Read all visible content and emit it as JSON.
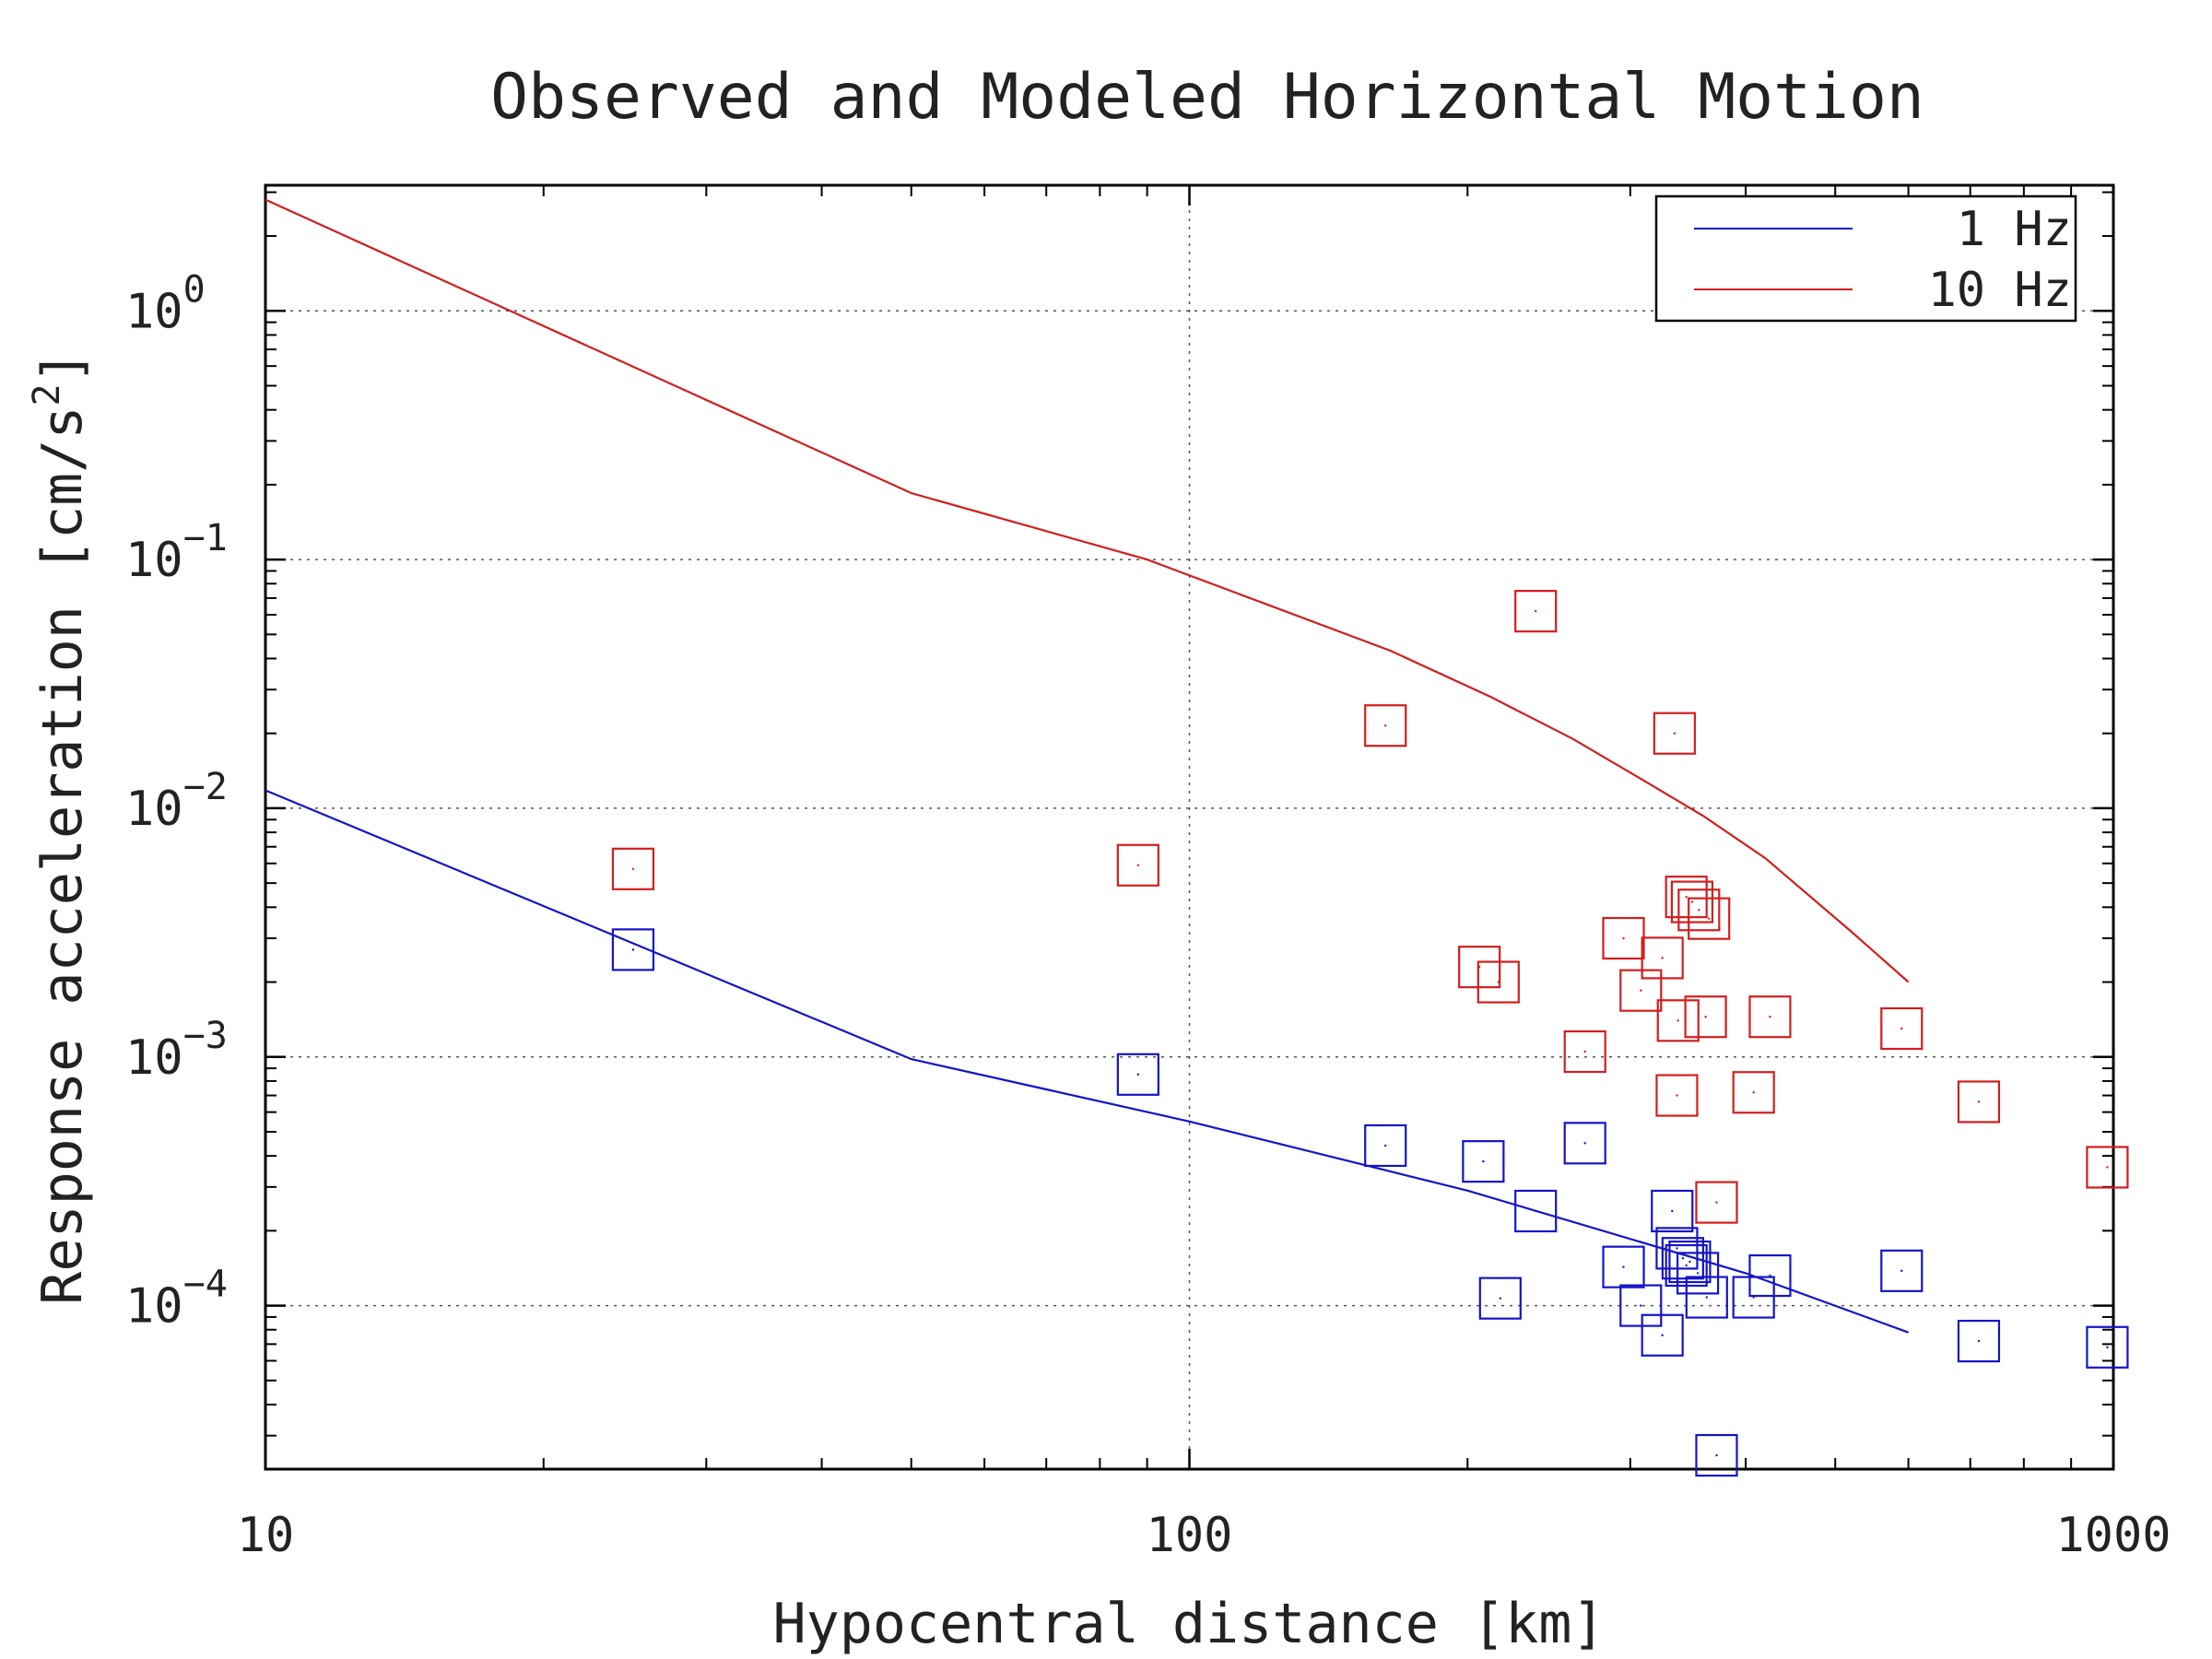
{
  "chart_data": {
    "type": "scatter",
    "title": "Observed and Modeled Horizontal Motion",
    "xlabel": "Hypocentral distance [km]",
    "ylabel": "Response acceleration [cm/s",
    "ylabel_superscript": "2",
    "ylabel_suffix": "]",
    "x_scale": "log",
    "y_scale": "log",
    "xlim": [
      10,
      1000
    ],
    "ylim": [
      2.2e-05,
      3.2
    ],
    "x_ticks": [
      {
        "value": 10,
        "label": "10"
      },
      {
        "value": 100,
        "label": "100"
      },
      {
        "value": 1000,
        "label": "1000"
      }
    ],
    "y_ticks": [
      {
        "value": 1,
        "base": "10",
        "exp": "0"
      },
      {
        "value": 0.1,
        "base": "10",
        "exp": "−1"
      },
      {
        "value": 0.01,
        "base": "10",
        "exp": "−2"
      },
      {
        "value": 0.001,
        "base": "10",
        "exp": "−3"
      },
      {
        "value": 0.0001,
        "base": "10",
        "exp": "−4"
      }
    ],
    "grid": true,
    "legend": {
      "position": "top-right"
    },
    "series": [
      {
        "name": "1 Hz",
        "color": "#1414c8",
        "model_line": [
          [
            10,
            0.0118
          ],
          [
            50,
            0.00098
          ],
          [
            100,
            0.00055
          ],
          [
            200,
            0.00029
          ],
          [
            400,
            0.000135
          ],
          [
            600,
            7.8e-05
          ]
        ],
        "observed": [
          [
            25,
            0.0027
          ],
          [
            88,
            0.00085
          ],
          [
            163,
            0.00044
          ],
          [
            208,
            0.00038
          ],
          [
            217,
            0.000107
          ],
          [
            237,
            0.00024
          ],
          [
            268,
            0.00045
          ],
          [
            295,
            0.000143
          ],
          [
            308,
            0.0001
          ],
          [
            325,
            7.6e-05
          ],
          [
            333,
            0.00024
          ],
          [
            337,
            0.00017
          ],
          [
            342,
            0.000155
          ],
          [
            345,
            0.000145
          ],
          [
            348,
            0.00015
          ],
          [
            355,
            0.000135
          ],
          [
            363,
            0.000108
          ],
          [
            372,
            2.5e-05
          ],
          [
            408,
            0.000108
          ],
          [
            425,
            0.000132
          ],
          [
            590,
            0.000138
          ],
          [
            715,
            7.2e-05
          ],
          [
            985,
            6.8e-05
          ]
        ]
      },
      {
        "name": "10 Hz",
        "color": "#d21e1e",
        "model_line": [
          [
            10,
            2.8
          ],
          [
            50,
            0.185
          ],
          [
            90,
            0.1
          ],
          [
            165,
            0.043
          ],
          [
            212,
            0.028
          ],
          [
            260,
            0.019
          ],
          [
            315,
            0.0125
          ],
          [
            360,
            0.0093
          ],
          [
            420,
            0.0063
          ],
          [
            520,
            0.0032
          ],
          [
            600,
            0.002
          ]
        ],
        "observed": [
          [
            25,
            0.0057
          ],
          [
            88,
            0.0059
          ],
          [
            163,
            0.0215
          ],
          [
            206,
            0.0023
          ],
          [
            216,
            0.002
          ],
          [
            237,
            0.062
          ],
          [
            268,
            0.00105
          ],
          [
            295,
            0.003
          ],
          [
            308,
            0.00185
          ],
          [
            325,
            0.0025
          ],
          [
            335,
            0.02
          ],
          [
            337,
            0.0007
          ],
          [
            338,
            0.0014
          ],
          [
            345,
            0.0044
          ],
          [
            350,
            0.0042
          ],
          [
            356,
            0.0039
          ],
          [
            362,
            0.00145
          ],
          [
            365,
            0.0036
          ],
          [
            372,
            0.00026
          ],
          [
            408,
            0.00072
          ],
          [
            425,
            0.00145
          ],
          [
            590,
            0.0013
          ],
          [
            715,
            0.00066
          ],
          [
            985,
            0.00036
          ]
        ]
      }
    ]
  }
}
